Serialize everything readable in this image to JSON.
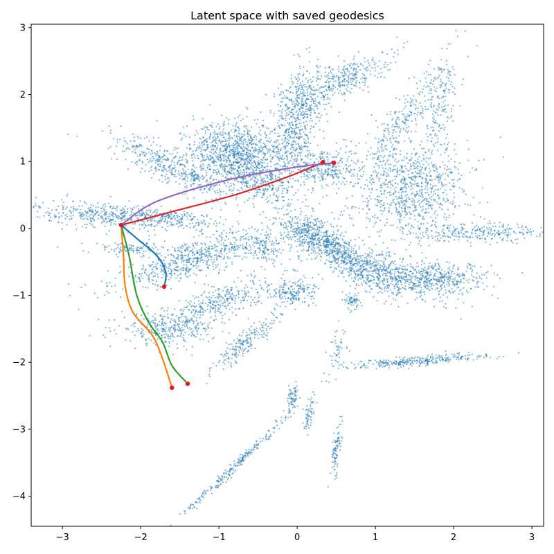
{
  "chart_data": {
    "type": "scatter",
    "title": "Latent space with saved geodesics",
    "xlabel": "",
    "ylabel": "",
    "xlim": [
      -3.4,
      3.15
    ],
    "ylim": [
      -4.45,
      3.05
    ],
    "xticks": [
      -3,
      -2,
      -1,
      0,
      1,
      2,
      3
    ],
    "yticks": [
      -4,
      -3,
      -2,
      -1,
      0,
      1,
      2,
      3
    ],
    "grid": false,
    "legend": "none",
    "scatter_color": "#1f77b4",
    "clusters": [
      {
        "center": [
          -0.75,
          1.15
        ],
        "spread": [
          0.22,
          0.45
        ],
        "angle": 85,
        "n": 900
      },
      {
        "center": [
          -0.55,
          0.75
        ],
        "spread": [
          0.35,
          0.18
        ],
        "angle": -30,
        "n": 350
      },
      {
        "center": [
          -1.55,
          0.9
        ],
        "spread": [
          0.45,
          0.17
        ],
        "angle": -30,
        "n": 450
      },
      {
        "center": [
          -2.45,
          0.2
        ],
        "spread": [
          0.45,
          0.14
        ],
        "angle": -5,
        "n": 350
      },
      {
        "center": [
          -1.7,
          0.15
        ],
        "spread": [
          0.45,
          0.1
        ],
        "angle": -5,
        "n": 250
      },
      {
        "center": [
          -2.1,
          -0.3
        ],
        "spread": [
          0.3,
          0.07
        ],
        "angle": 0,
        "n": 120
      },
      {
        "center": [
          -1.3,
          -0.45
        ],
        "spread": [
          0.55,
          0.17
        ],
        "angle": 20,
        "n": 650
      },
      {
        "center": [
          -1.65,
          -1.5
        ],
        "spread": [
          0.3,
          0.16
        ],
        "angle": 0,
        "n": 300
      },
      {
        "center": [
          -1.0,
          -1.1
        ],
        "spread": [
          0.35,
          0.17
        ],
        "angle": 25,
        "n": 350
      },
      {
        "center": [
          -0.65,
          -1.7
        ],
        "spread": [
          0.3,
          0.09
        ],
        "angle": 45,
        "n": 200
      },
      {
        "center": [
          -0.4,
          -0.3
        ],
        "spread": [
          0.12,
          0.15
        ],
        "angle": 70,
        "n": 120
      },
      {
        "center": [
          0.0,
          1.6
        ],
        "spread": [
          0.45,
          0.2
        ],
        "angle": 80,
        "n": 600
      },
      {
        "center": [
          0.35,
          0.9
        ],
        "spread": [
          0.2,
          0.22
        ],
        "angle": 0,
        "n": 300
      },
      {
        "center": [
          0.55,
          2.2
        ],
        "spread": [
          0.35,
          0.16
        ],
        "angle": 30,
        "n": 350
      },
      {
        "center": [
          0.5,
          -0.35
        ],
        "spread": [
          0.45,
          0.17
        ],
        "angle": -40,
        "n": 650
      },
      {
        "center": [
          0.2,
          -0.1
        ],
        "spread": [
          0.2,
          0.2
        ],
        "angle": 0,
        "n": 250
      },
      {
        "center": [
          -0.05,
          -0.95
        ],
        "spread": [
          0.1,
          0.22
        ],
        "angle": 90,
        "n": 200
      },
      {
        "center": [
          1.45,
          0.6
        ],
        "spread": [
          0.35,
          0.5
        ],
        "angle": 80,
        "n": 900
      },
      {
        "center": [
          1.4,
          1.7
        ],
        "spread": [
          0.55,
          0.15
        ],
        "angle": 60,
        "n": 250
      },
      {
        "center": [
          1.85,
          1.9
        ],
        "spread": [
          0.35,
          0.12
        ],
        "angle": 80,
        "n": 150
      },
      {
        "center": [
          1.15,
          -0.65
        ],
        "spread": [
          0.45,
          0.2
        ],
        "angle": -25,
        "n": 450
      },
      {
        "center": [
          1.8,
          -0.75
        ],
        "spread": [
          0.35,
          0.16
        ],
        "angle": 0,
        "n": 400
      },
      {
        "center": [
          2.35,
          -0.05
        ],
        "spread": [
          0.4,
          0.1
        ],
        "angle": 0,
        "n": 250
      },
      {
        "center": [
          1.55,
          -1.98
        ],
        "spread": [
          0.45,
          0.05
        ],
        "angle": 5,
        "n": 300
      },
      {
        "center": [
          0.7,
          -1.1
        ],
        "spread": [
          0.05,
          0.08
        ],
        "angle": 0,
        "n": 60
      },
      {
        "center": [
          0.5,
          -1.8
        ],
        "spread": [
          0.18,
          0.08
        ],
        "angle": 80,
        "n": 50
      },
      {
        "center": [
          0.15,
          -2.8
        ],
        "spread": [
          0.13,
          0.05
        ],
        "angle": 80,
        "n": 60
      },
      {
        "center": [
          -0.05,
          -2.5
        ],
        "spread": [
          0.1,
          0.05
        ],
        "angle": 80,
        "n": 70
      },
      {
        "center": [
          0.5,
          -3.3
        ],
        "spread": [
          0.2,
          0.04
        ],
        "angle": 85,
        "n": 90
      },
      {
        "center": [
          -0.75,
          -3.5
        ],
        "spread": [
          0.55,
          0.04
        ],
        "angle": 48,
        "n": 250
      }
    ],
    "geodesics": [
      {
        "color": "#1f77b4",
        "points": [
          [
            -2.25,
            0.05
          ],
          [
            -2.05,
            -0.15
          ],
          [
            -1.8,
            -0.4
          ],
          [
            -1.68,
            -0.65
          ],
          [
            -1.7,
            -0.87
          ]
        ],
        "endpoint": [
          -1.7,
          -0.87
        ]
      },
      {
        "color": "#ff7f0e",
        "points": [
          [
            -2.25,
            0.05
          ],
          [
            -2.22,
            -0.4
          ],
          [
            -2.2,
            -0.85
          ],
          [
            -2.1,
            -1.25
          ],
          [
            -1.85,
            -1.6
          ],
          [
            -1.72,
            -1.95
          ],
          [
            -1.6,
            -2.38
          ]
        ],
        "endpoint": [
          -1.6,
          -2.38
        ]
      },
      {
        "color": "#2ca02c",
        "points": [
          [
            -2.25,
            0.05
          ],
          [
            -2.15,
            -0.4
          ],
          [
            -2.05,
            -1.0
          ],
          [
            -1.9,
            -1.4
          ],
          [
            -1.72,
            -1.7
          ],
          [
            -1.6,
            -2.05
          ],
          [
            -1.4,
            -2.32
          ]
        ],
        "endpoint": [
          -1.4,
          -2.32
        ]
      },
      {
        "color": "#d62728",
        "points": [
          [
            -2.25,
            0.05
          ],
          [
            -1.6,
            0.25
          ],
          [
            -0.8,
            0.5
          ],
          [
            -0.1,
            0.78
          ],
          [
            0.33,
            0.99
          ]
        ],
        "endpoint": [
          0.33,
          0.99
        ]
      },
      {
        "color": "#9467bd",
        "points": [
          [
            -2.25,
            0.05
          ],
          [
            -1.8,
            0.4
          ],
          [
            -0.9,
            0.72
          ],
          [
            -0.1,
            0.9
          ],
          [
            0.47,
            0.98
          ]
        ],
        "endpoint": [
          0.47,
          0.98
        ]
      }
    ],
    "endpoint_color": "#e31a1c"
  }
}
